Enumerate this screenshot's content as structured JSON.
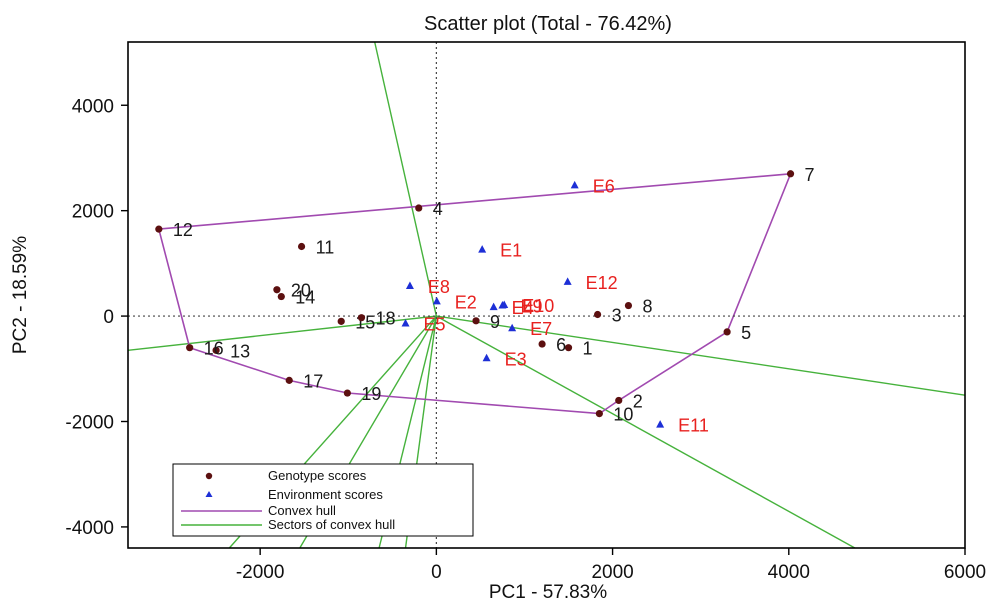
{
  "chart_data": {
    "type": "scatter",
    "title": "Scatter plot (Total - 76.42%)",
    "xlabel": "PC1 - 57.83%",
    "ylabel": "PC2 - 18.59%",
    "xlim": [
      -3500,
      6000
    ],
    "ylim": [
      -4400,
      5200
    ],
    "xticks": [
      -2000,
      0,
      2000,
      4000,
      6000
    ],
    "yticks": [
      4000,
      2000,
      0,
      -2000,
      -4000
    ],
    "xtick_labels": [
      "-2000",
      "0",
      "2000",
      "4000",
      "6000"
    ],
    "ytick_labels": [
      "4000",
      "2000",
      "0",
      "-2000",
      "-4000"
    ],
    "reference_lines": {
      "x": 0,
      "y": 0,
      "style": "dotted"
    },
    "colors": {
      "genotype": "#5c1010",
      "environment": "#1d2fd6",
      "hull": "#a14ab0",
      "sectors": "#46b23c",
      "env_label": "#e8211f"
    },
    "genotypes": [
      {
        "label": "1",
        "x": 1500,
        "y": -600
      },
      {
        "label": "2",
        "x": 2070,
        "y": -1600
      },
      {
        "label": "3",
        "x": 1830,
        "y": 30
      },
      {
        "label": "4",
        "x": -200,
        "y": 2050
      },
      {
        "label": "5",
        "x": 3300,
        "y": -300
      },
      {
        "label": "6",
        "x": 1200,
        "y": -530
      },
      {
        "label": "7",
        "x": 4020,
        "y": 2700
      },
      {
        "label": "8",
        "x": 2180,
        "y": 200
      },
      {
        "label": "9",
        "x": 450,
        "y": -90
      },
      {
        "label": "10",
        "x": 1850,
        "y": -1850
      },
      {
        "label": "11",
        "x": -1530,
        "y": 1320
      },
      {
        "label": "12",
        "x": -3150,
        "y": 1650
      },
      {
        "label": "13",
        "x": -2500,
        "y": -650
      },
      {
        "label": "14",
        "x": -1760,
        "y": 370
      },
      {
        "label": "15",
        "x": -1080,
        "y": -100
      },
      {
        "label": "16",
        "x": -2800,
        "y": -600
      },
      {
        "label": "17",
        "x": -1670,
        "y": -1220
      },
      {
        "label": "18",
        "x": -850,
        "y": -30
      },
      {
        "label": "19",
        "x": -1010,
        "y": -1460
      },
      {
        "label": "20",
        "x": -1810,
        "y": 500
      }
    ],
    "environments": [
      {
        "label": "E1",
        "x": 520,
        "y": 1260
      },
      {
        "label": "E2",
        "x": 5,
        "y": 280
      },
      {
        "label": "E3",
        "x": 570,
        "y": -800
      },
      {
        "label": "E4",
        "x": 650,
        "y": 170
      },
      {
        "label": "E5",
        "x": -350,
        "y": -140
      },
      {
        "label": "E6",
        "x": 1570,
        "y": 2480
      },
      {
        "label": "E7",
        "x": 860,
        "y": -230
      },
      {
        "label": "E8",
        "x": -300,
        "y": 570
      },
      {
        "label": "E9",
        "x": 750,
        "y": 200
      },
      {
        "label": "E10",
        "x": 770,
        "y": 210
      },
      {
        "label": "E11",
        "x": 2540,
        "y": -2060
      },
      {
        "label": "E12",
        "x": 1490,
        "y": 650
      }
    ],
    "convex_hull": [
      "12",
      "7",
      "5",
      "2",
      "10",
      "19",
      "17",
      "16"
    ],
    "sector_lines": [
      {
        "x": -700,
        "y": 5200
      },
      {
        "x": -3500,
        "y": -650
      },
      {
        "x": -2350,
        "y": -4400
      },
      {
        "x": -1550,
        "y": -4400
      },
      {
        "x": -650,
        "y": -4400
      },
      {
        "x": -350,
        "y": -4400
      },
      {
        "x": 4750,
        "y": -4400
      },
      {
        "x": 6000,
        "y": -1500
      }
    ],
    "legend": {
      "position": "bottom-left",
      "entries": [
        {
          "marker": "genotype-dot",
          "label": "Genotype scores"
        },
        {
          "marker": "environment-triangle",
          "label": "Environment scores"
        },
        {
          "marker": "hull-line",
          "label": "Convex hull"
        },
        {
          "marker": "sector-line",
          "label": "Sectors of convex hull"
        }
      ]
    }
  }
}
